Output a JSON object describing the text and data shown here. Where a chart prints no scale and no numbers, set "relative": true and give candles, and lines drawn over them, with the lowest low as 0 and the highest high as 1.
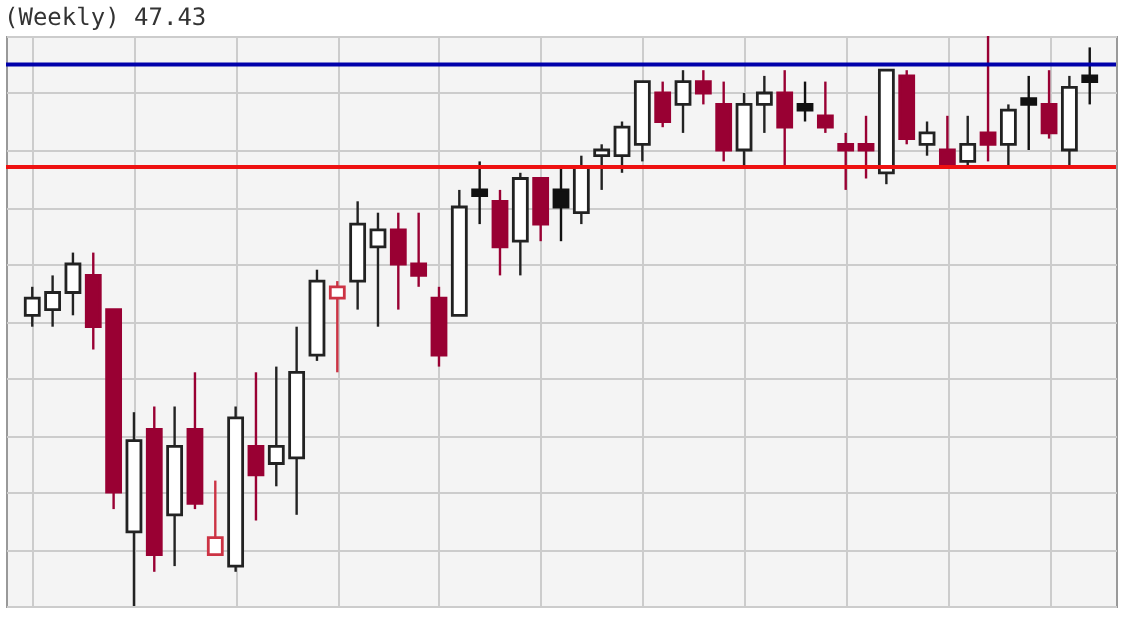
{
  "chart_data": {
    "type": "candlestick",
    "title": "(Weekly) 47.43",
    "relative": true,
    "grid": true,
    "categories": [
      null,
      null,
      null,
      null,
      null,
      null,
      null,
      null,
      null,
      null,
      null,
      null,
      null,
      null,
      null,
      null,
      null,
      null,
      null,
      null,
      null,
      null,
      null,
      null,
      null,
      null,
      null,
      null,
      null,
      null,
      null,
      null,
      null,
      null,
      null,
      null,
      null,
      null,
      null,
      null,
      null,
      null,
      null,
      null,
      null,
      null,
      null,
      null,
      null,
      null,
      null,
      null,
      null
    ],
    "ohlc": [
      [
        0.51,
        0.56,
        0.49,
        0.54
      ],
      [
        0.52,
        0.58,
        0.49,
        0.55
      ],
      [
        0.55,
        0.62,
        0.51,
        0.6
      ],
      [
        0.58,
        0.62,
        0.45,
        0.49
      ],
      [
        0.52,
        0.52,
        0.17,
        0.2
      ],
      [
        0.13,
        0.34,
        0,
        0.29
      ],
      [
        0.31,
        0.35,
        0.06,
        0.09
      ],
      [
        0.16,
        0.35,
        0.07,
        0.28
      ],
      [
        0.31,
        0.41,
        0.17,
        0.18
      ],
      [
        0.09,
        0.22,
        0.09,
        0.12
      ],
      [
        0.07,
        0.35,
        0.06,
        0.33
      ],
      [
        0.28,
        0.41,
        0.15,
        0.23
      ],
      [
        0.25,
        0.42,
        0.21,
        0.28
      ],
      [
        0.26,
        0.49,
        0.16,
        0.41
      ],
      [
        0.44,
        0.59,
        0.43,
        0.57
      ],
      [
        0.54,
        0.57,
        0.41,
        0.56
      ],
      [
        0.57,
        0.71,
        0.52,
        0.67
      ],
      [
        0.63,
        0.69,
        0.49,
        0.66
      ],
      [
        0.66,
        0.69,
        0.52,
        0.6
      ],
      [
        0.6,
        0.69,
        0.56,
        0.58
      ],
      [
        0.54,
        0.56,
        0.42,
        0.44
      ],
      [
        0.51,
        0.73,
        0.51,
        0.7
      ],
      [
        0.73,
        0.78,
        0.67,
        0.72
      ],
      [
        0.71,
        0.73,
        0.58,
        0.63
      ],
      [
        0.64,
        0.76,
        0.58,
        0.75
      ],
      [
        0.75,
        0.75,
        0.64,
        0.67
      ],
      [
        0.73,
        0.77,
        0.64,
        0.7
      ],
      [
        0.69,
        0.79,
        0.67,
        0.77
      ],
      [
        0.79,
        0.81,
        0.73,
        0.8
      ],
      [
        0.79,
        0.85,
        0.76,
        0.84
      ],
      [
        0.81,
        0.92,
        0.78,
        0.92
      ],
      [
        0.9,
        0.92,
        0.84,
        0.85
      ],
      [
        0.88,
        0.94,
        0.83,
        0.92
      ],
      [
        0.92,
        0.94,
        0.88,
        0.9
      ],
      [
        0.88,
        0.92,
        0.78,
        0.8
      ],
      [
        0.8,
        0.9,
        0.77,
        0.88
      ],
      [
        0.88,
        0.93,
        0.83,
        0.9
      ],
      [
        0.9,
        0.94,
        0.77,
        0.84
      ],
      [
        0.88,
        0.92,
        0.85,
        0.87
      ],
      [
        0.86,
        0.92,
        0.83,
        0.84
      ],
      [
        0.81,
        0.83,
        0.73,
        0.8
      ],
      [
        0.81,
        0.86,
        0.75,
        0.8
      ],
      [
        0.76,
        0.94,
        0.74,
        0.94
      ],
      [
        0.93,
        0.94,
        0.81,
        0.82
      ],
      [
        0.81,
        0.85,
        0.79,
        0.83
      ],
      [
        0.8,
        0.86,
        0.77,
        0.77
      ],
      [
        0.78,
        0.86,
        0.77,
        0.81
      ],
      [
        0.83,
        1,
        0.78,
        0.81
      ],
      [
        0.81,
        0.88,
        0.77,
        0.87
      ],
      [
        0.89,
        0.93,
        0.8,
        0.88
      ],
      [
        0.88,
        0.94,
        0.82,
        0.83
      ],
      [
        0.8,
        0.93,
        0.77,
        0.91
      ],
      [
        0.93,
        0.98,
        0.88,
        0.92
      ]
    ],
    "colors": [
      "#222222",
      "#222222",
      "#222222",
      "#990033",
      "#990033",
      "#222222",
      "#990033",
      "#222222",
      "#990033",
      "#cc3344",
      "#222222",
      "#990033",
      "#222222",
      "#222222",
      "#222222",
      "#cc3344",
      "#222222",
      "#222222",
      "#990033",
      "#990033",
      "#990033",
      "#222222",
      "#111111",
      "#990033",
      "#222222",
      "#990033",
      "#111111",
      "#222222",
      "#222222",
      "#222222",
      "#222222",
      "#990033",
      "#222222",
      "#990033",
      "#990033",
      "#222222",
      "#222222",
      "#990033",
      "#111111",
      "#990033",
      "#990033",
      "#990033",
      "#222222",
      "#990033",
      "#222222",
      "#990033",
      "#222222",
      "#990033",
      "#222222",
      "#111111",
      "#990033",
      "#222222",
      "#111111"
    ],
    "ref_lines": [
      {
        "axis": "y",
        "value": 0.95,
        "color": "#0000aa"
      },
      {
        "axis": "y",
        "value": 0.77,
        "color": "#ee1111"
      }
    ]
  }
}
